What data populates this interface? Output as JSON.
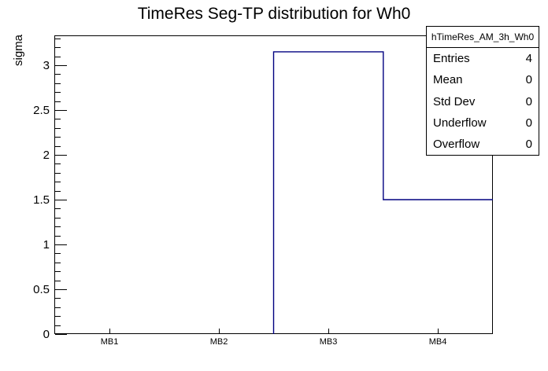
{
  "canvas": {
    "title": "TimeRes Seg-TP distribution for Wh0"
  },
  "chart_data": {
    "type": "bar",
    "style": "root-step-histogram",
    "title": "TimeRes Seg-TP distribution for Wh0",
    "categories": [
      "MB1",
      "MB2",
      "MB3",
      "MB4"
    ],
    "values": [
      0,
      0,
      3.15,
      1.5
    ],
    "xlabel": "",
    "ylabel": "sigma",
    "ylim": [
      0,
      3.333
    ],
    "ytick_major_step": 0.5,
    "ytick_minor_step": 0.1,
    "grid": false,
    "legend_position": "none",
    "line_color": "#000080",
    "frame_color": "#000000",
    "background_color": "#ffffff",
    "text_color": "#000000"
  },
  "stats_box": {
    "title": "hTimeRes_AM_3h_Wh0",
    "rows": [
      {
        "label": "Entries",
        "value": "4"
      },
      {
        "label": "Mean",
        "value": "0"
      },
      {
        "label": "Std Dev",
        "value": "0"
      },
      {
        "label": "Underflow",
        "value": "0"
      },
      {
        "label": "Overflow",
        "value": "0"
      }
    ]
  }
}
